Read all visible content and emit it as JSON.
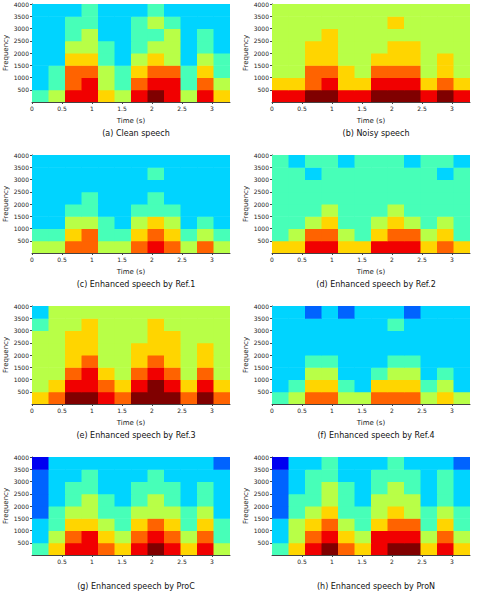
{
  "chart_data": [
    {
      "type": "heatmap",
      "title": "(a) Clean speech",
      "xlabel": "Time (s)",
      "ylabel": "Frequency",
      "xlim": [
        0,
        3.3
      ],
      "xticks": [
        0,
        0.5,
        1,
        1.5,
        2,
        2.5,
        3
      ],
      "ylim": [
        0,
        4000
      ],
      "yticks": [
        500,
        1000,
        1500,
        2000,
        2500,
        3000,
        3500,
        4000
      ],
      "x_edges": [
        0,
        0.275,
        0.55,
        0.825,
        1.1,
        1.375,
        1.65,
        1.925,
        2.2,
        2.475,
        2.75,
        3.025,
        3.3
      ],
      "y_edges": [
        0,
        500,
        1000,
        1500,
        2000,
        2500,
        3000,
        3500,
        4000
      ],
      "zlim": [
        0,
        9
      ],
      "cells": [
        [
          4,
          5,
          8,
          8,
          6,
          5,
          8,
          9,
          8,
          5,
          8,
          6
        ],
        [
          3,
          4,
          7,
          8,
          5,
          4,
          7,
          8,
          8,
          4,
          7,
          5
        ],
        [
          3,
          4,
          7,
          7,
          5,
          4,
          6,
          7,
          7,
          4,
          6,
          4
        ],
        [
          3,
          3,
          6,
          6,
          4,
          3,
          5,
          6,
          5,
          3,
          5,
          4
        ],
        [
          3,
          3,
          5,
          5,
          4,
          3,
          4,
          5,
          5,
          3,
          4,
          3
        ],
        [
          3,
          3,
          4,
          5,
          3,
          3,
          4,
          4,
          5,
          3,
          4,
          3
        ],
        [
          3,
          3,
          4,
          4,
          3,
          3,
          4,
          5,
          4,
          3,
          3,
          3
        ],
        [
          3,
          3,
          3,
          4,
          3,
          3,
          3,
          4,
          3,
          3,
          3,
          3
        ]
      ]
    },
    {
      "type": "heatmap",
      "title": "(b) Noisy speech",
      "xlabel": "Time (s)",
      "ylabel": "Frequency",
      "xlim": [
        0,
        3.3
      ],
      "xticks": [
        0,
        0.5,
        1,
        1.5,
        2,
        2.5,
        3
      ],
      "ylim": [
        0,
        4000
      ],
      "yticks": [
        500,
        1000,
        1500,
        2000,
        2500,
        3000,
        3500,
        4000
      ],
      "x_edges": [
        0,
        0.275,
        0.55,
        0.825,
        1.1,
        1.375,
        1.65,
        1.925,
        2.2,
        2.475,
        2.75,
        3.025,
        3.3
      ],
      "y_edges": [
        0,
        500,
        1000,
        1500,
        2000,
        2500,
        3000,
        3500,
        4000
      ],
      "zlim": [
        0,
        9
      ],
      "cells": [
        [
          8,
          8,
          9,
          9,
          8,
          8,
          9,
          9,
          9,
          8,
          9,
          8
        ],
        [
          6,
          6,
          7,
          8,
          6,
          6,
          8,
          8,
          8,
          6,
          7,
          6
        ],
        [
          5,
          5,
          7,
          7,
          6,
          5,
          7,
          7,
          7,
          5,
          6,
          5
        ],
        [
          5,
          5,
          6,
          6,
          5,
          5,
          6,
          6,
          6,
          5,
          6,
          5
        ],
        [
          5,
          5,
          6,
          6,
          5,
          5,
          5,
          6,
          6,
          5,
          5,
          5
        ],
        [
          5,
          5,
          5,
          6,
          5,
          5,
          5,
          5,
          5,
          5,
          5,
          5
        ],
        [
          5,
          5,
          5,
          5,
          5,
          5,
          5,
          6,
          5,
          5,
          5,
          5
        ],
        [
          5,
          5,
          5,
          5,
          5,
          5,
          5,
          5,
          5,
          5,
          5,
          5
        ]
      ]
    },
    {
      "type": "heatmap",
      "title": "(c) Enhanced speech by Ref.1",
      "xlabel": "Time (s)",
      "ylabel": "Frequency",
      "xlim": [
        0,
        3.3
      ],
      "xticks": [
        0,
        0.5,
        1,
        1.5,
        2,
        2.5,
        3
      ],
      "ylim": [
        0,
        4000
      ],
      "yticks": [
        500,
        1000,
        1500,
        2000,
        2500,
        3000,
        3500,
        4000
      ],
      "x_edges": [
        0,
        0.275,
        0.55,
        0.825,
        1.1,
        1.375,
        1.65,
        1.925,
        2.2,
        2.475,
        2.75,
        3.025,
        3.3
      ],
      "y_edges": [
        0,
        500,
        1000,
        1500,
        2000,
        2500,
        3000,
        3500,
        4000
      ],
      "zlim": [
        0,
        9
      ],
      "cells": [
        [
          5,
          5,
          7,
          7,
          5,
          5,
          7,
          8,
          7,
          5,
          7,
          5
        ],
        [
          4,
          4,
          6,
          7,
          4,
          4,
          6,
          7,
          6,
          4,
          5,
          4
        ],
        [
          3,
          3,
          5,
          5,
          4,
          3,
          5,
          6,
          5,
          3,
          4,
          3
        ],
        [
          3,
          3,
          4,
          4,
          3,
          3,
          4,
          4,
          4,
          3,
          3,
          3
        ],
        [
          3,
          3,
          3,
          4,
          3,
          3,
          3,
          4,
          3,
          3,
          3,
          3
        ],
        [
          3,
          3,
          3,
          3,
          3,
          3,
          3,
          3,
          3,
          3,
          3,
          3
        ],
        [
          3,
          3,
          3,
          3,
          3,
          3,
          3,
          4,
          3,
          3,
          3,
          3
        ],
        [
          3,
          3,
          3,
          3,
          3,
          3,
          3,
          3,
          3,
          3,
          3,
          3
        ]
      ]
    },
    {
      "type": "heatmap",
      "title": "(d) Enhanced speech by Ref.2",
      "xlabel": "Time (s)",
      "ylabel": "Frequency",
      "xlim": [
        0,
        3.3
      ],
      "xticks": [
        0,
        0.5,
        1,
        1.5,
        2,
        2.5,
        3
      ],
      "ylim": [
        0,
        4000
      ],
      "yticks": [
        500,
        1000,
        1500,
        2000,
        2500,
        3000,
        3500,
        4000
      ],
      "x_edges": [
        0,
        0.275,
        0.55,
        0.825,
        1.1,
        1.375,
        1.65,
        1.925,
        2.2,
        2.475,
        2.75,
        3.025,
        3.3
      ],
      "y_edges": [
        0,
        500,
        1000,
        1500,
        2000,
        2500,
        3000,
        3500,
        4000
      ],
      "zlim": [
        0,
        9
      ],
      "cells": [
        [
          6,
          6,
          8,
          8,
          6,
          6,
          8,
          8,
          8,
          6,
          7,
          6
        ],
        [
          4,
          5,
          7,
          7,
          5,
          4,
          6,
          7,
          7,
          5,
          6,
          4
        ],
        [
          4,
          4,
          5,
          6,
          4,
          4,
          5,
          6,
          5,
          4,
          5,
          4
        ],
        [
          4,
          4,
          4,
          5,
          4,
          4,
          4,
          5,
          4,
          4,
          4,
          4
        ],
        [
          4,
          4,
          4,
          4,
          4,
          4,
          4,
          4,
          4,
          4,
          4,
          4
        ],
        [
          4,
          4,
          4,
          4,
          4,
          4,
          4,
          4,
          4,
          4,
          4,
          4
        ],
        [
          4,
          4,
          3,
          4,
          4,
          4,
          4,
          4,
          4,
          4,
          3,
          4
        ],
        [
          4,
          3,
          4,
          4,
          3,
          4,
          4,
          4,
          3,
          4,
          4,
          3
        ]
      ]
    },
    {
      "type": "heatmap",
      "title": "(e) Enhanced speech by Ref.3",
      "xlabel": "Time (s)",
      "ylabel": "Frequency",
      "xlim": [
        0,
        3.3
      ],
      "xticks": [
        0,
        0.5,
        1,
        1.5,
        2,
        2.5,
        3
      ],
      "ylim": [
        0,
        4000
      ],
      "yticks": [
        500,
        1000,
        1500,
        2000,
        2500,
        3000,
        3500,
        4000
      ],
      "x_edges": [
        0,
        0.275,
        0.55,
        0.825,
        1.1,
        1.375,
        1.65,
        1.925,
        2.2,
        2.475,
        2.75,
        3.025,
        3.3
      ],
      "y_edges": [
        0,
        500,
        1000,
        1500,
        2000,
        2500,
        3000,
        3500,
        4000
      ],
      "zlim": [
        0,
        9
      ],
      "cells": [
        [
          6,
          7,
          9,
          9,
          8,
          7,
          9,
          9,
          9,
          7,
          9,
          7
        ],
        [
          5,
          6,
          8,
          8,
          7,
          6,
          8,
          9,
          8,
          6,
          8,
          6
        ],
        [
          5,
          5,
          7,
          8,
          6,
          5,
          7,
          8,
          7,
          5,
          7,
          5
        ],
        [
          5,
          5,
          6,
          7,
          5,
          5,
          6,
          7,
          6,
          5,
          6,
          5
        ],
        [
          5,
          5,
          6,
          6,
          5,
          5,
          6,
          6,
          6,
          5,
          6,
          5
        ],
        [
          5,
          5,
          6,
          6,
          5,
          5,
          5,
          6,
          6,
          5,
          5,
          5
        ],
        [
          4,
          5,
          5,
          6,
          5,
          5,
          5,
          6,
          5,
          5,
          5,
          5
        ],
        [
          3,
          5,
          5,
          5,
          5,
          5,
          5,
          5,
          5,
          5,
          5,
          5
        ]
      ]
    },
    {
      "type": "heatmap",
      "title": "(f) Enhanced speech by Ref.4",
      "xlabel": "Time (s)",
      "ylabel": "Frequency",
      "xlim": [
        0,
        3.3
      ],
      "xticks": [
        0,
        0.5,
        1,
        1.5,
        2,
        2.5,
        3
      ],
      "ylim": [
        0,
        4000
      ],
      "yticks": [
        500,
        1000,
        1500,
        2000,
        2500,
        3000,
        3500,
        4000
      ],
      "x_edges": [
        0,
        0.275,
        0.55,
        0.825,
        1.1,
        1.375,
        1.65,
        1.925,
        2.2,
        2.475,
        2.75,
        3.025,
        3.3
      ],
      "y_edges": [
        0,
        500,
        1000,
        1500,
        2000,
        2500,
        3000,
        3500,
        4000
      ],
      "zlim": [
        0,
        9
      ],
      "cells": [
        [
          4,
          5,
          7,
          7,
          5,
          5,
          7,
          7,
          7,
          5,
          6,
          5
        ],
        [
          3,
          4,
          6,
          6,
          4,
          3,
          6,
          6,
          6,
          4,
          5,
          3
        ],
        [
          3,
          3,
          5,
          5,
          3,
          3,
          4,
          5,
          5,
          3,
          4,
          3
        ],
        [
          3,
          3,
          4,
          4,
          3,
          3,
          3,
          4,
          4,
          3,
          3,
          3
        ],
        [
          3,
          3,
          3,
          3,
          3,
          3,
          3,
          3,
          3,
          3,
          3,
          3
        ],
        [
          3,
          3,
          3,
          3,
          3,
          3,
          3,
          3,
          3,
          3,
          3,
          3
        ],
        [
          3,
          3,
          3,
          3,
          3,
          3,
          3,
          4,
          3,
          3,
          3,
          3
        ],
        [
          3,
          3,
          2,
          3,
          2,
          3,
          3,
          3,
          2,
          3,
          3,
          3
        ]
      ]
    },
    {
      "type": "heatmap",
      "title": "(g) Enhanced speech by ProC",
      "ylabel": "Frequency",
      "xlim": [
        0,
        3.3
      ],
      "xticks": [
        0.5,
        1,
        1.5,
        2,
        2.5,
        3
      ],
      "ylim": [
        0,
        4000
      ],
      "yticks": [
        500,
        1000,
        1500,
        2000,
        2500,
        3000,
        3500,
        4000
      ],
      "x_edges": [
        0,
        0.275,
        0.55,
        0.825,
        1.1,
        1.375,
        1.65,
        1.925,
        2.2,
        2.475,
        2.75,
        3.025,
        3.3
      ],
      "y_edges": [
        0,
        500,
        1000,
        1500,
        2000,
        2500,
        3000,
        3500,
        4000
      ],
      "zlim": [
        0,
        9
      ],
      "cells": [
        [
          4,
          6,
          8,
          8,
          7,
          6,
          8,
          9,
          8,
          6,
          8,
          5
        ],
        [
          3,
          5,
          7,
          8,
          6,
          5,
          7,
          8,
          7,
          5,
          7,
          4
        ],
        [
          3,
          4,
          6,
          6,
          5,
          4,
          6,
          7,
          6,
          4,
          6,
          4
        ],
        [
          2,
          4,
          5,
          5,
          4,
          4,
          5,
          5,
          5,
          4,
          5,
          3
        ],
        [
          2,
          3,
          4,
          5,
          4,
          3,
          4,
          5,
          4,
          3,
          4,
          3
        ],
        [
          2,
          3,
          4,
          4,
          3,
          3,
          4,
          4,
          4,
          3,
          4,
          3
        ],
        [
          2,
          3,
          3,
          4,
          3,
          3,
          3,
          4,
          3,
          3,
          3,
          3
        ],
        [
          1,
          3,
          3,
          3,
          3,
          3,
          3,
          3,
          3,
          3,
          3,
          2
        ]
      ]
    },
    {
      "type": "heatmap",
      "title": "(h) Enhanced speech by ProN",
      "ylabel": "Frequency",
      "xlim": [
        0,
        3.3
      ],
      "xticks": [
        0.5,
        1,
        1.5,
        2,
        2.5,
        3
      ],
      "ylim": [
        0,
        4000
      ],
      "yticks": [
        500,
        1000,
        1500,
        2000,
        2500,
        3000,
        3500,
        4000
      ],
      "x_edges": [
        0,
        0.275,
        0.55,
        0.825,
        1.1,
        1.375,
        1.65,
        1.925,
        2.2,
        2.475,
        2.75,
        3.025,
        3.3
      ],
      "y_edges": [
        0,
        500,
        1000,
        1500,
        2000,
        2500,
        3000,
        3500,
        4000
      ],
      "zlim": [
        0,
        9
      ],
      "cells": [
        [
          4,
          6,
          8,
          9,
          7,
          6,
          8,
          9,
          9,
          6,
          8,
          6
        ],
        [
          3,
          5,
          7,
          8,
          6,
          5,
          8,
          8,
          8,
          5,
          7,
          5
        ],
        [
          3,
          5,
          6,
          7,
          5,
          4,
          6,
          7,
          7,
          4,
          6,
          4
        ],
        [
          2,
          4,
          5,
          6,
          4,
          4,
          5,
          6,
          5,
          4,
          5,
          4
        ],
        [
          2,
          4,
          4,
          5,
          4,
          3,
          5,
          5,
          5,
          3,
          4,
          3
        ],
        [
          2,
          3,
          4,
          5,
          4,
          3,
          4,
          5,
          4,
          3,
          4,
          3
        ],
        [
          2,
          3,
          4,
          4,
          3,
          3,
          4,
          4,
          4,
          3,
          4,
          3
        ],
        [
          1,
          3,
          3,
          4,
          3,
          3,
          3,
          4,
          3,
          3,
          3,
          2
        ]
      ]
    }
  ]
}
